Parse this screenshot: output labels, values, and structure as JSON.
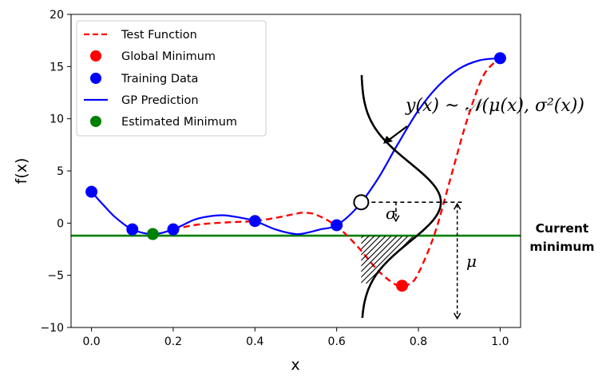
{
  "chart_data": {
    "type": "line",
    "xlabel": "x",
    "ylabel": "f(x)",
    "xlim": [
      -0.05,
      1.05
    ],
    "ylim": [
      -10,
      20
    ],
    "xticks": [
      0.0,
      0.2,
      0.4,
      0.6,
      0.8,
      1.0
    ],
    "xtick_labels": [
      "0.0",
      "0.2",
      "0.4",
      "0.6",
      "0.8",
      "1.0"
    ],
    "yticks": [
      -10,
      -5,
      0,
      5,
      10,
      15,
      20
    ],
    "ytick_labels": [
      "−10",
      "−5",
      "0",
      "5",
      "10",
      "15",
      "20"
    ],
    "legend_position": "top-left",
    "series": [
      {
        "name": "Test Function",
        "style": "dashed",
        "color": "#ff0000",
        "x": [
          0.2,
          0.25,
          0.3,
          0.35,
          0.4,
          0.45,
          0.5,
          0.52,
          0.55,
          0.6,
          0.65,
          0.7,
          0.74,
          0.76,
          0.78,
          0.8,
          0.84,
          0.88,
          0.92,
          0.96,
          1.0
        ],
        "y": [
          -0.6,
          -0.2,
          0.0,
          0.1,
          0.2,
          0.5,
          0.9,
          1.0,
          0.8,
          -0.3,
          -2.2,
          -4.5,
          -5.8,
          -6.0,
          -5.8,
          -4.8,
          -1.0,
          4.5,
          10.0,
          14.2,
          15.8
        ]
      },
      {
        "name": "GP Prediction",
        "style": "solid",
        "color": "#0000ff",
        "x": [
          0.0,
          0.03,
          0.06,
          0.1,
          0.15,
          0.2,
          0.25,
          0.28,
          0.32,
          0.36,
          0.4,
          0.45,
          0.5,
          0.53,
          0.56,
          0.6,
          0.65,
          0.7,
          0.75,
          0.8,
          0.85,
          0.9,
          0.95,
          1.0
        ],
        "y": [
          3.0,
          1.7,
          0.5,
          -0.6,
          -1.05,
          -0.6,
          0.3,
          0.6,
          0.75,
          0.55,
          0.2,
          -0.6,
          -1.05,
          -0.9,
          -0.6,
          -0.2,
          1.5,
          4.2,
          7.6,
          10.8,
          13.2,
          14.8,
          15.6,
          15.8
        ]
      },
      {
        "name": "Training Data",
        "style": "markers",
        "color": "#0000ff",
        "x": [
          0.0,
          0.1,
          0.2,
          0.4,
          0.6,
          1.0
        ],
        "y": [
          3.0,
          -0.6,
          -0.6,
          0.2,
          -0.2,
          15.8
        ]
      },
      {
        "name": "Global Minimum",
        "style": "markers",
        "color": "#ff0000",
        "x": [
          0.76
        ],
        "y": [
          -6.0
        ]
      },
      {
        "name": "Estimated Minimum",
        "style": "markers",
        "color": "#008000",
        "x": [
          0.15
        ],
        "y": [
          -1.05
        ]
      }
    ],
    "current_minimum_y": -1.2,
    "illustration": {
      "query_point": {
        "x": 0.66,
        "y": 2.0
      },
      "density_baseline_x": 0.66,
      "density_peak_x": 0.855,
      "density_sigma": 3.8,
      "mu_arrow_x": 0.895,
      "mu_arrow_bottom_y": -9.3,
      "sigma_arrow_x": 0.745,
      "sigma_arrow_bottom_y": 0.2
    },
    "annotations": {
      "distribution_formula": "y(x) ~ 𝒩(μ(x), σ²(x))",
      "sigma_symbol": "σ",
      "mu_symbol": "μ",
      "current_minimum_line1": "Current",
      "current_minimum_line2": "minimum"
    }
  },
  "colors": {
    "test_function": "#ff0000",
    "gp_prediction": "#0000ff",
    "estimated_minimum": "#008000",
    "current_minimum_line": "#008000",
    "annotation": "#000000"
  }
}
